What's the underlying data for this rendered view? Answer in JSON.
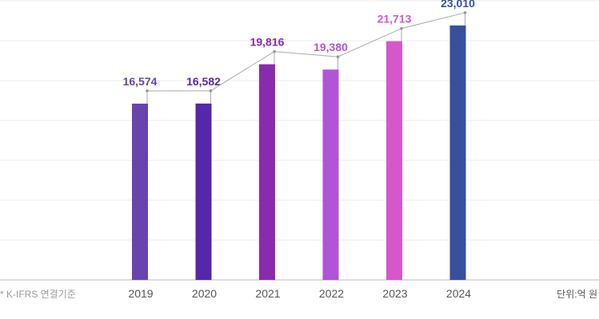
{
  "chart_data": {
    "type": "bar",
    "title": "",
    "xlabel": "",
    "ylabel": "",
    "categories": [
      "2019",
      "2020",
      "2021",
      "2022",
      "2023",
      "2024"
    ],
    "values": [
      16574,
      16582,
      19816,
      19380,
      21713,
      23010
    ],
    "data_labels": [
      "16,574",
      "16,582",
      "19,816",
      "19,380",
      "21,713",
      "23,010"
    ],
    "colors": [
      "#6744ae",
      "#5427ad",
      "#8a2aad",
      "#b055d6",
      "#d458cc",
      "#36509c"
    ],
    "ylim": [
      2060,
      25000
    ],
    "grid": true,
    "trend_line": true
  },
  "footnote": "* K-IFRS 연결기준",
  "unit_label": "단위:억 원"
}
